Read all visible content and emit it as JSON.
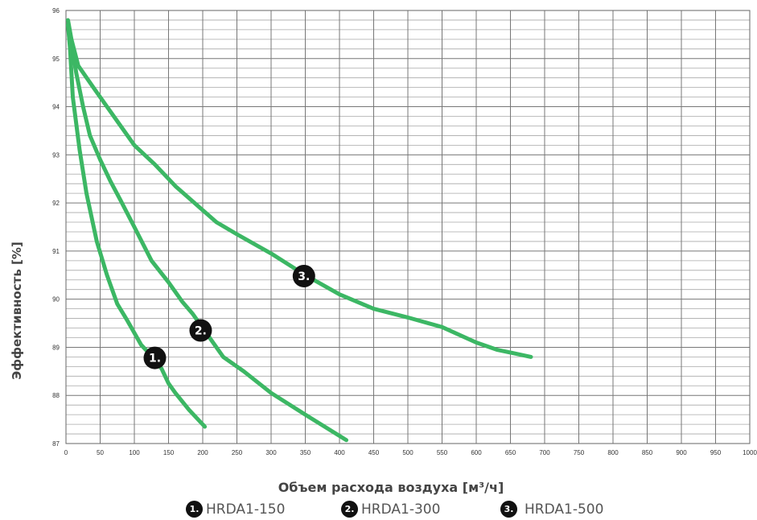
{
  "chart_data": {
    "type": "line",
    "xlabel": "Объем расхода воздуха [м³/ч]",
    "ylabel": "Эффективность  [%]",
    "xlim": [
      0,
      1000
    ],
    "ylim": [
      87,
      96
    ],
    "x_ticks": [
      0,
      50,
      100,
      150,
      200,
      250,
      300,
      350,
      400,
      450,
      500,
      550,
      600,
      650,
      700,
      750,
      800,
      850,
      900,
      950,
      1000
    ],
    "y_ticks": [
      87,
      88,
      89,
      90,
      91,
      92,
      93,
      94,
      95,
      96
    ],
    "grid": true,
    "line_color": "#3cb764",
    "series": [
      {
        "name": "HRDA1-150",
        "marker": "1.",
        "marker_at": [
          130,
          88.78
        ],
        "points": [
          [
            3,
            95.7
          ],
          [
            6,
            95.2
          ],
          [
            10,
            94.2
          ],
          [
            20,
            93.1
          ],
          [
            30,
            92.2
          ],
          [
            45,
            91.2
          ],
          [
            60,
            90.5
          ],
          [
            75,
            89.9
          ],
          [
            90,
            89.55
          ],
          [
            110,
            89.05
          ],
          [
            130,
            88.75
          ],
          [
            140,
            88.55
          ],
          [
            150,
            88.25
          ],
          [
            160,
            88.05
          ],
          [
            180,
            87.7
          ],
          [
            203,
            87.35
          ]
        ]
      },
      {
        "name": "HRDA1-300",
        "marker": "2.",
        "marker_at": [
          197,
          89.35
        ],
        "points": [
          [
            3,
            95.7
          ],
          [
            8,
            95.3
          ],
          [
            15,
            94.7
          ],
          [
            25,
            94.0
          ],
          [
            35,
            93.4
          ],
          [
            50,
            92.9
          ],
          [
            65,
            92.45
          ],
          [
            80,
            92.05
          ],
          [
            100,
            91.5
          ],
          [
            125,
            90.8
          ],
          [
            150,
            90.35
          ],
          [
            170,
            89.95
          ],
          [
            185,
            89.7
          ],
          [
            205,
            89.3
          ],
          [
            230,
            88.8
          ],
          [
            260,
            88.5
          ],
          [
            300,
            88.05
          ],
          [
            350,
            87.6
          ],
          [
            410,
            87.07
          ]
        ]
      },
      {
        "name": "HRDA1-500",
        "marker": "3.",
        "marker_at": [
          348,
          90.48
        ],
        "points": [
          [
            3,
            95.8
          ],
          [
            8,
            95.4
          ],
          [
            18,
            94.85
          ],
          [
            40,
            94.4
          ],
          [
            60,
            94.0
          ],
          [
            80,
            93.6
          ],
          [
            100,
            93.2
          ],
          [
            130,
            92.8
          ],
          [
            150,
            92.5
          ],
          [
            160,
            92.35
          ],
          [
            200,
            91.85
          ],
          [
            220,
            91.6
          ],
          [
            250,
            91.35
          ],
          [
            300,
            90.95
          ],
          [
            350,
            90.5
          ],
          [
            400,
            90.1
          ],
          [
            450,
            89.8
          ],
          [
            500,
            89.62
          ],
          [
            550,
            89.42
          ],
          [
            600,
            89.1
          ],
          [
            630,
            88.95
          ],
          [
            680,
            88.8
          ]
        ]
      }
    ]
  },
  "legend": [
    {
      "badge": "1.",
      "label": "HRDA1-150"
    },
    {
      "badge": "2.",
      "label": "HRDA1-300"
    },
    {
      "badge": "3.",
      "label": "HRDA1-500"
    }
  ]
}
